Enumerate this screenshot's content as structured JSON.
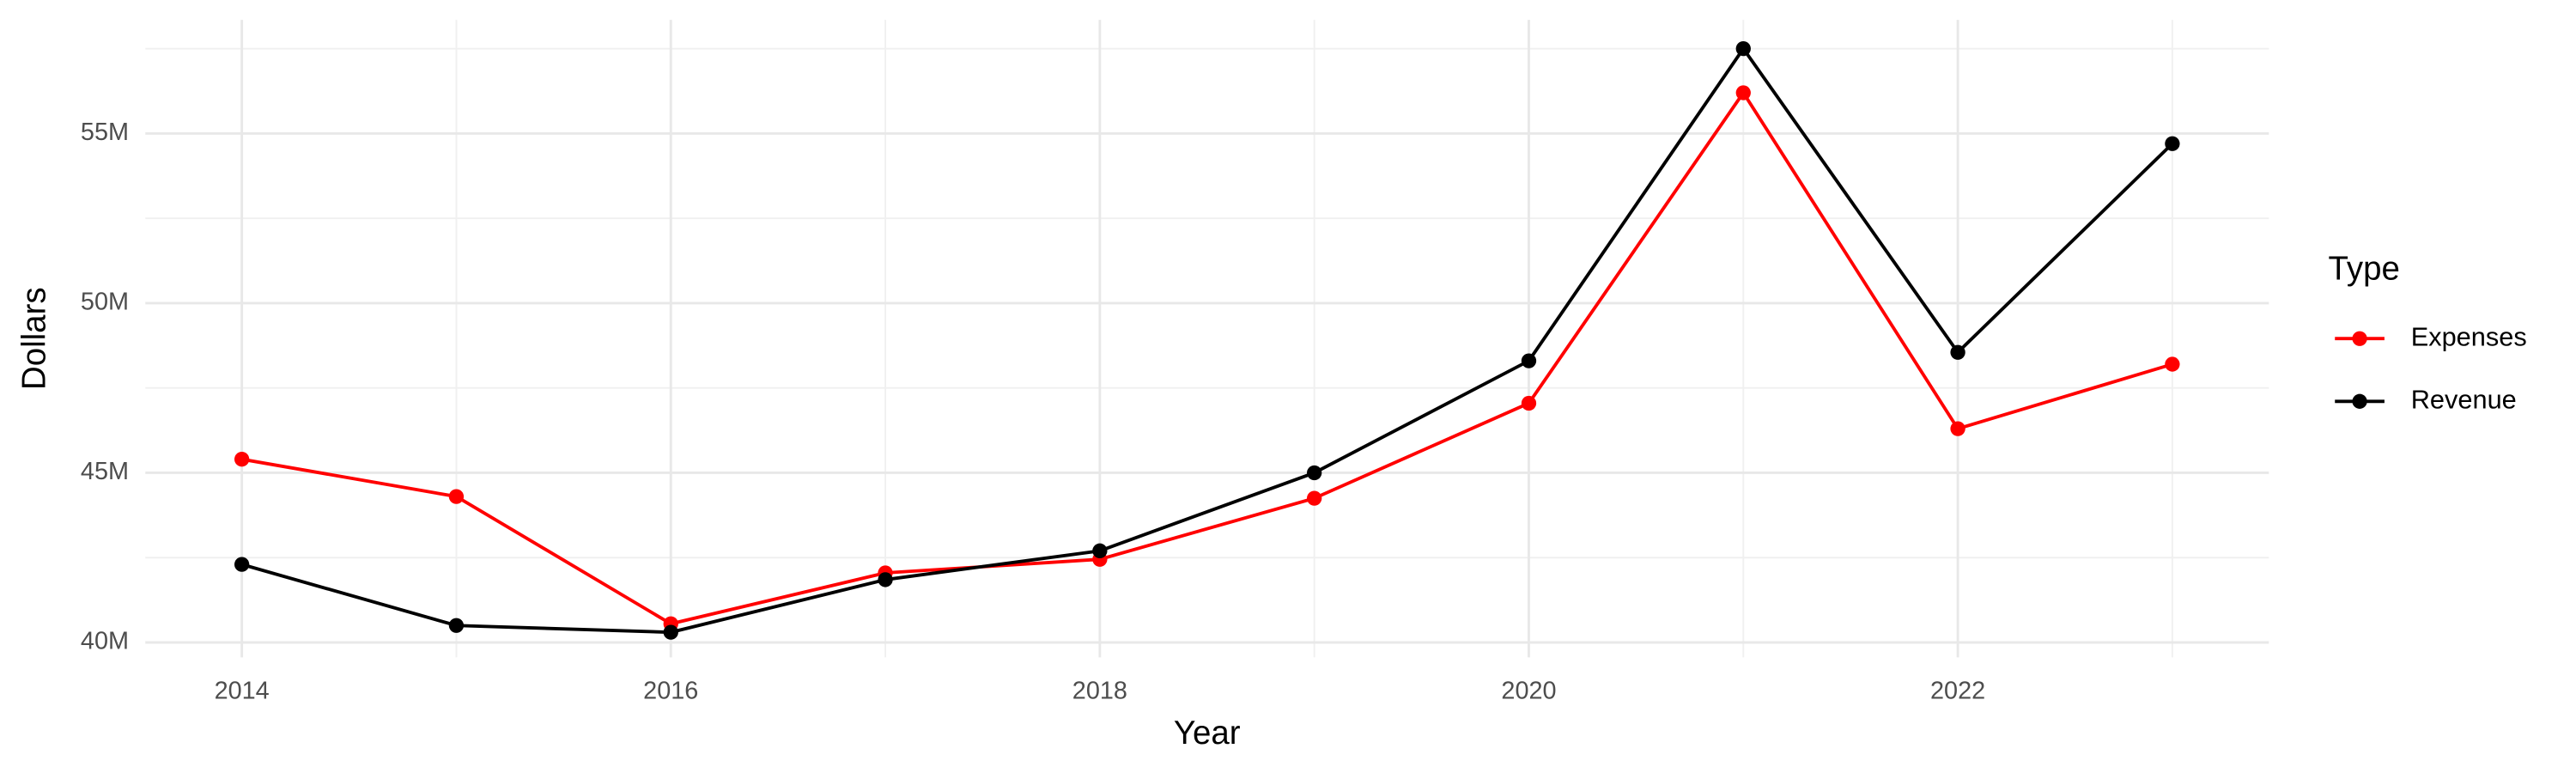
{
  "chart_data": {
    "type": "line",
    "x_label": "Year",
    "y_label": "Dollars",
    "legend_title": "Type",
    "legend_position": "right",
    "grid": true,
    "x": [
      2014,
      2015,
      2016,
      2017,
      2018,
      2019,
      2020,
      2021,
      2022,
      2023
    ],
    "series": [
      {
        "name": "Expenses",
        "color": "#ff0000",
        "values": [
          45400000,
          44300000,
          40550000,
          42050000,
          42450000,
          44250000,
          47050000,
          56200000,
          46300000,
          48200000
        ]
      },
      {
        "name": "Revenue",
        "color": "#000000",
        "values": [
          42300000,
          40500000,
          40300000,
          41850000,
          42700000,
          45000000,
          48300000,
          57500000,
          48550000,
          54700000
        ]
      }
    ],
    "xlim": [
      2013.55,
      2023.45
    ],
    "xticks": [
      2014,
      2016,
      2018,
      2020,
      2022
    ],
    "ylim": [
      39560000,
      58350000
    ],
    "yticks": [
      {
        "value": 40000000,
        "label": "40M"
      },
      {
        "value": 45000000,
        "label": "45M"
      },
      {
        "value": 50000000,
        "label": "50M"
      },
      {
        "value": 55000000,
        "label": "55M"
      }
    ]
  }
}
